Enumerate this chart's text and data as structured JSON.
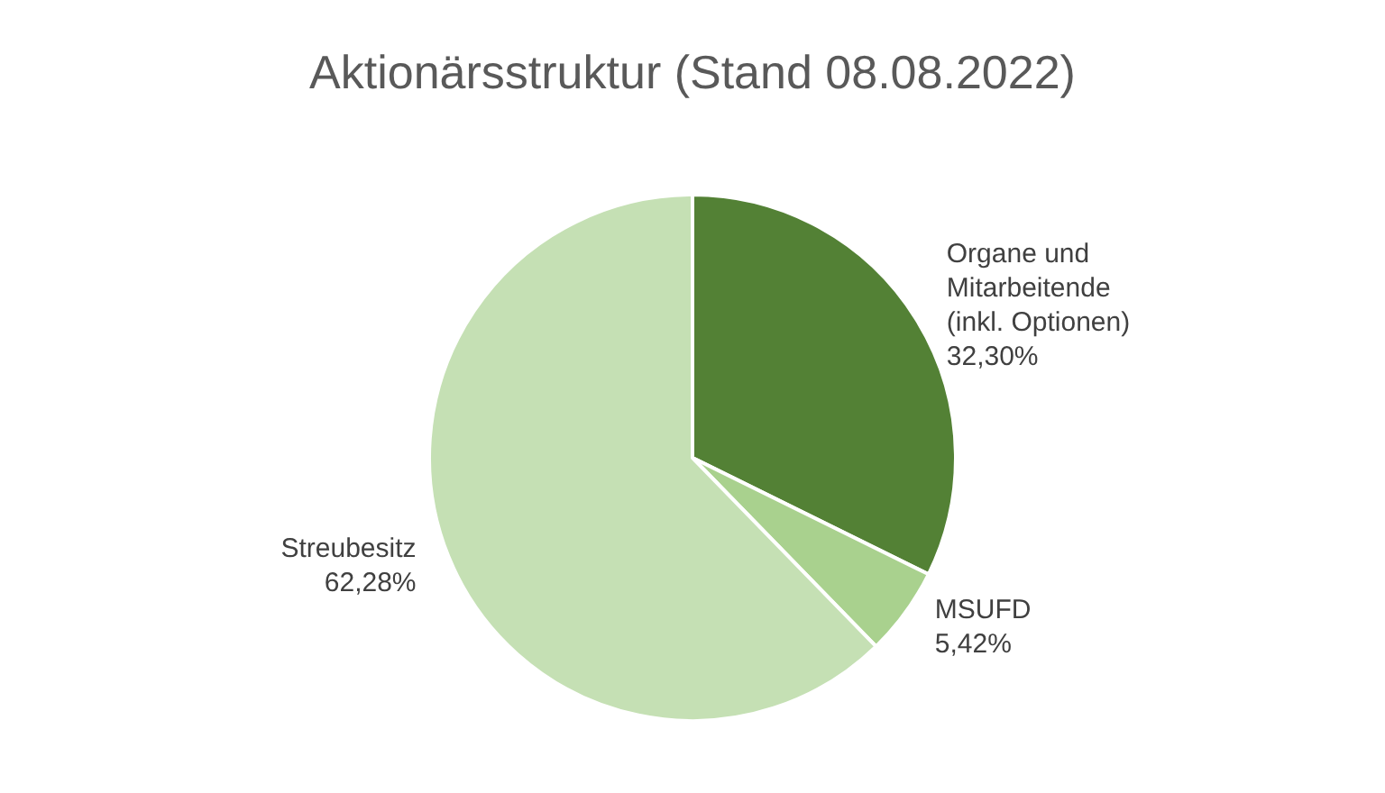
{
  "chart_data": {
    "type": "pie",
    "title": "Aktionärsstruktur (Stand 08.08.2022)",
    "categories": [
      "Organe und\nMitarbeitende\n(inkl. Optionen)",
      "MSUFD",
      "Streubesitz"
    ],
    "values": [
      32.3,
      5.42,
      62.28
    ],
    "value_labels": [
      "32,30%",
      "5,42%",
      "62,28%"
    ],
    "colors": [
      "#538135",
      "#a9d18e",
      "#c5e0b4"
    ],
    "legend": false
  }
}
